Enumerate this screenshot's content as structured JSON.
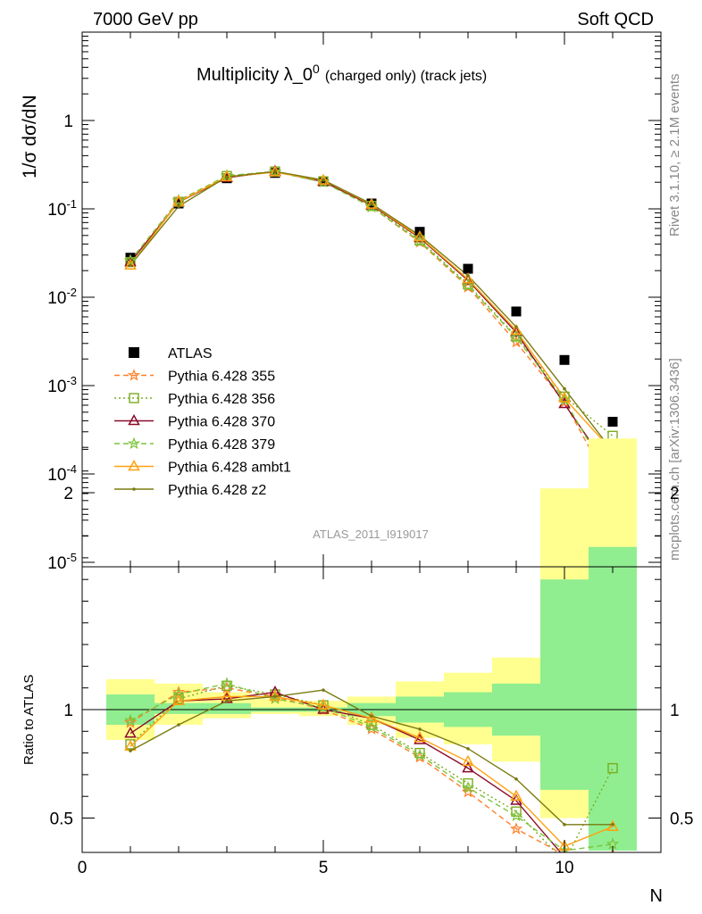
{
  "header": {
    "left": "7000 GeV pp",
    "right": "Soft QCD"
  },
  "title_main": "Multiplicity λ_0",
  "title_sup": "0",
  "title_suffix": "(charged only) (track jets)",
  "side_label_top": "Rivet 3.1.10, ≥ 2.1M events",
  "side_label_bottom": "mcplots.cern.ch [arXiv:1306.3436]",
  "watermark": "ATLAS_2011_I919017",
  "chart_data": [
    {
      "type": "scatter",
      "panel": "main",
      "ylabel": "1/σ dσ/dN",
      "yscale": "log",
      "ylim": [
        1e-05,
        5
      ],
      "xlim": [
        0,
        12
      ],
      "ytick_labels": [
        "1",
        "10^-1",
        "10^-2",
        "10^-3",
        "10^-4",
        "10^-5"
      ],
      "legend": "left-bottom",
      "x": [
        1,
        2,
        3,
        4,
        5,
        6,
        7,
        8,
        9,
        10,
        11
      ],
      "series": [
        {
          "name": "ATLAS",
          "color": "#000000",
          "marker": "square",
          "values": [
            0.028,
            0.115,
            0.222,
            0.255,
            0.205,
            0.115,
            0.055,
            0.021,
            0.0069,
            0.00195,
            0.00039
          ]
        },
        {
          "name": "Pythia 6.428 355",
          "color": "#ff7f27",
          "marker": "star",
          "dash": "dashed",
          "values": [
            0.026,
            0.125,
            0.235,
            0.265,
            0.205,
            0.105,
            0.042,
            0.013,
            0.0031,
            0.00065,
            6.5e-05
          ]
        },
        {
          "name": "Pythia 6.428 356",
          "color": "#7cab1f",
          "marker": "open-square",
          "dash": "dotted",
          "values": [
            0.025,
            0.12,
            0.235,
            0.265,
            0.205,
            0.108,
            0.044,
            0.014,
            0.0036,
            0.00075,
            0.00027
          ]
        },
        {
          "name": "Pythia 6.428 370",
          "color": "#8b0a2a",
          "marker": "open-triangle",
          "dash": "solid",
          "values": [
            0.025,
            0.119,
            0.225,
            0.265,
            0.203,
            0.11,
            0.047,
            0.0155,
            0.004,
            0.00062,
            0.0001
          ]
        },
        {
          "name": "Pythia 6.428 379",
          "color": "#7cc43a",
          "marker": "star",
          "dash": "dashed",
          "values": [
            0.026,
            0.123,
            0.238,
            0.262,
            0.2,
            0.105,
            0.043,
            0.0135,
            0.0035,
            0.00069,
            8e-05
          ]
        },
        {
          "name": "Pythia 6.428 ambt1",
          "color": "#ffa010",
          "marker": "open-triangle",
          "dash": "solid",
          "values": [
            0.023,
            0.12,
            0.23,
            0.26,
            0.21,
            0.112,
            0.048,
            0.016,
            0.0042,
            0.00072,
            0.00018
          ]
        },
        {
          "name": "Pythia 6.428 z2",
          "color": "#7a7a10",
          "marker": "dot",
          "dash": "solid",
          "values": [
            0.023,
            0.107,
            0.23,
            0.265,
            0.212,
            0.114,
            0.05,
            0.0175,
            0.0046,
            0.00092,
            0.00018
          ]
        }
      ]
    },
    {
      "type": "line",
      "panel": "ratio",
      "ylabel": "Ratio to ATLAS",
      "xlabel": "N",
      "ylim": [
        0.35,
        2.3
      ],
      "xlim": [
        0,
        12
      ],
      "x": [
        1,
        2,
        3,
        4,
        5,
        6,
        7,
        8,
        9,
        10,
        11
      ],
      "xtick_labels": [
        "0",
        "5",
        "10"
      ],
      "ytick_labels": [
        "0.5",
        "1",
        "2"
      ],
      "band_inner": {
        "color": "#90ee90",
        "low": [
          0.93,
          0.98,
          0.98,
          0.99,
          0.99,
          0.97,
          0.94,
          0.92,
          0.88,
          0.63,
          0.25
        ],
        "high": [
          1.07,
          1.03,
          1.03,
          1.01,
          1.01,
          1.03,
          1.06,
          1.08,
          1.12,
          1.6,
          1.75
        ]
      },
      "band_outer": {
        "color": "#ffff90",
        "low": [
          0.86,
          0.93,
          0.96,
          0.98,
          0.97,
          0.93,
          0.87,
          0.84,
          0.76,
          0.5,
          0.2
        ],
        "high": [
          1.14,
          1.12,
          1.08,
          1.05,
          1.04,
          1.06,
          1.13,
          1.17,
          1.24,
          2.02,
          2.25
        ]
      },
      "series": [
        {
          "name": "Pythia 6.428 355",
          "color": "#ff7f27",
          "dash": "dashed",
          "marker": "star",
          "values": [
            0.94,
            1.08,
            1.1,
            1.06,
            1.0,
            0.91,
            0.78,
            0.62,
            0.45,
            0.33,
            0.33
          ]
        },
        {
          "name": "Pythia 6.428 356",
          "color": "#7cab1f",
          "dash": "dotted",
          "marker": "open-square",
          "values": [
            0.84,
            1.05,
            1.11,
            1.07,
            1.02,
            0.93,
            0.8,
            0.66,
            0.53,
            0.3,
            0.73
          ]
        },
        {
          "name": "Pythia 6.428 370",
          "color": "#8b0a2a",
          "dash": "solid",
          "marker": "open-triangle",
          "values": [
            0.89,
            1.04,
            1.05,
            1.08,
            1.0,
            0.96,
            0.86,
            0.73,
            0.58,
            0.32,
            0.3
          ]
        },
        {
          "name": "Pythia 6.428 379",
          "color": "#7cc43a",
          "dash": "dashed",
          "marker": "star",
          "values": [
            0.95,
            1.07,
            1.12,
            1.05,
            1.01,
            0.92,
            0.79,
            0.64,
            0.51,
            0.35,
            0.38
          ]
        },
        {
          "name": "Pythia 6.428 ambt1",
          "color": "#ffa010",
          "dash": "solid",
          "marker": "open-triangle",
          "values": [
            0.83,
            1.04,
            1.06,
            1.06,
            1.02,
            0.96,
            0.87,
            0.76,
            0.6,
            0.37,
            0.46
          ]
        },
        {
          "name": "Pythia 6.428 z2",
          "color": "#7a7a10",
          "dash": "solid",
          "marker": "dot",
          "values": [
            0.81,
            0.93,
            1.04,
            1.06,
            1.09,
            0.97,
            0.91,
            0.82,
            0.68,
            0.47,
            0.47
          ]
        }
      ]
    }
  ]
}
